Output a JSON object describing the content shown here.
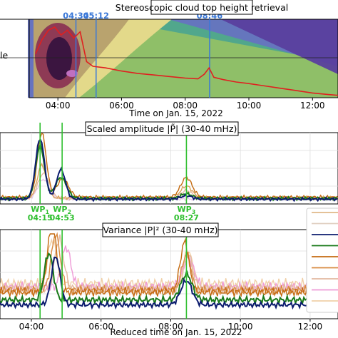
{
  "chart_data": [
    {
      "type": "heatmap",
      "title": "Stereoscopic cloud top height retrieval",
      "ylabel_fragment": "le",
      "xlabel": "Time on Jan. 15, 2022",
      "x_ticks": [
        "04:00",
        "06:00",
        "08:00",
        "10:00",
        "12:00"
      ],
      "x_tick_hours": [
        4,
        6,
        8,
        10,
        12
      ],
      "xlim_hours": [
        3.1,
        12.8
      ],
      "markers": [
        {
          "label": "04:34",
          "hour": 4.567
        },
        {
          "label": "05:12",
          "hour": 5.2
        },
        {
          "label": "08:46",
          "hour": 8.767
        }
      ],
      "marker_color": "#3a78d8",
      "colors": {
        "red_line": "#e02020",
        "dark": "#3b1540",
        "wine": "#8e3a55",
        "tan": "#b9a36e",
        "yellow": "#e3d98a",
        "green": "#8fbf68",
        "teal": "#4ea58e",
        "blue": "#6673c0",
        "purple": "#5a3f9e"
      },
      "series": [
        {
          "values_hours": [
            3.3,
            3.5,
            3.7,
            3.9,
            4.1,
            4.3,
            4.5,
            4.7,
            4.9,
            5.1,
            5.5,
            6.0,
            6.5,
            7.0,
            7.5,
            8.0,
            8.4,
            8.6,
            8.75,
            8.9,
            9.2,
            9.6,
            10.0,
            10.5,
            11.0,
            11.5,
            12.0,
            12.5,
            12.8
          ],
          "values": [
            0.56,
            0.74,
            0.86,
            0.9,
            0.8,
            0.86,
            0.76,
            0.84,
            0.46,
            0.4,
            0.38,
            0.34,
            0.31,
            0.29,
            0.27,
            0.25,
            0.24,
            0.3,
            0.38,
            0.26,
            0.23,
            0.2,
            0.18,
            0.15,
            0.12,
            0.09,
            0.06,
            0.04,
            0.03
          ]
        }
      ]
    },
    {
      "type": "line",
      "title": "Scaled amplitude |P̃| (30-40 mHz)",
      "xlim_hours": [
        3.1,
        12.8
      ],
      "wave_packets": [
        {
          "label": "WP",
          "sub": "1",
          "time": "04:15",
          "hour": 4.25
        },
        {
          "label": "WP",
          "sub": "2",
          "time": "04:53",
          "hour": 4.883
        },
        {
          "label": "WP",
          "sub": "3",
          "time": "08:27",
          "hour": 8.45
        }
      ],
      "wp_color": "#2fbf2f",
      "series": [
        {
          "color": "#0b1b6e",
          "peaks": [
            [
              4.25,
              0.92
            ],
            [
              4.85,
              0.45
            ],
            [
              8.45,
              0.05
            ]
          ],
          "base": 0.03
        },
        {
          "color": "#1a7a1a",
          "peaks": [
            [
              4.25,
              0.8
            ],
            [
              4.85,
              0.32
            ],
            [
              8.45,
              0.07
            ]
          ],
          "base": 0.04
        },
        {
          "color": "#c46a10",
          "peaks": [
            [
              4.3,
              0.98
            ],
            [
              4.9,
              0.28
            ],
            [
              8.45,
              0.3
            ]
          ],
          "base": 0.06
        },
        {
          "color": "#d9a25a",
          "peaks": [
            [
              4.3,
              0.5
            ],
            [
              8.45,
              0.18
            ]
          ],
          "base": 0.05
        },
        {
          "color": "#e3b8a0",
          "peaks": [
            [
              4.35,
              0.38
            ],
            [
              8.45,
              0.12
            ]
          ],
          "base": 0.04
        },
        {
          "color": "#e6c7e6",
          "peaks": [
            [
              4.35,
              0.3
            ]
          ],
          "base": 0.03
        }
      ]
    },
    {
      "type": "line",
      "title": "Variance |P|² (30-40 mHz)",
      "xlabel": "Reduced time on Jan. 15, 2022",
      "x_ticks": [
        "04:00",
        "06:00",
        "08:00",
        "10:00",
        "12:00"
      ],
      "x_tick_hours": [
        4,
        6,
        8,
        10,
        12
      ],
      "xlim_hours": [
        3.1,
        12.8
      ],
      "wp_hours": [
        4.25,
        4.883,
        8.45
      ],
      "series": [
        {
          "color": "#0b1b6e",
          "peaks": [
            [
              4.7,
              0.6
            ],
            [
              8.45,
              0.3
            ]
          ],
          "base": 0.12
        },
        {
          "color": "#1a7a1a",
          "peaks": [
            [
              4.5,
              0.58
            ],
            [
              8.45,
              0.32
            ]
          ],
          "base": 0.18
        },
        {
          "color": "#c46a10",
          "peaks": [
            [
              4.6,
              0.86
            ],
            [
              8.4,
              0.62
            ]
          ],
          "base": 0.28
        },
        {
          "color": "#d98a40",
          "peaks": [
            [
              4.7,
              0.7
            ],
            [
              8.45,
              0.45
            ]
          ],
          "base": 0.3
        },
        {
          "color": "#e3b8a0",
          "peaks": [
            [
              4.8,
              0.62
            ],
            [
              8.5,
              0.42
            ]
          ],
          "base": 0.32
        },
        {
          "color": "#ee9ad6",
          "peaks": [
            [
              5.0,
              0.5
            ],
            [
              8.5,
              0.36
            ]
          ],
          "base": 0.34
        },
        {
          "color": "#f0d0a8",
          "peaks": [
            [
              4.6,
              0.55
            ],
            [
              8.5,
              0.4
            ]
          ],
          "base": 0.38
        }
      ],
      "legend_colors": [
        "#e0b888",
        "#e0cfc0",
        "#0b1b6e",
        "#1a7a1a",
        "#c46a10",
        "#d98a40",
        "#e3b8a0",
        "#ee9ad6",
        "#f0d0a8"
      ]
    }
  ]
}
